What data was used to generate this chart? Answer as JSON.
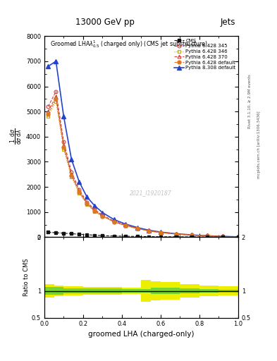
{
  "title_top": "13000 GeV pp",
  "title_right": "Jets",
  "xlabel": "groomed LHA (charged-only)",
  "ylabel_ratio": "Ratio to CMS",
  "right_label1": "Rivet 3.1.10, ≥ 2.9M events",
  "right_label2": "mcplots.cern.ch [arXiv:1306.3436]",
  "watermark": "2021_I1920187",
  "x_data": [
    0.02,
    0.06,
    0.1,
    0.14,
    0.18,
    0.22,
    0.26,
    0.3,
    0.36,
    0.42,
    0.48,
    0.54,
    0.6,
    0.68,
    0.76,
    0.84,
    0.92,
    1.0
  ],
  "cms_y": [
    200,
    180,
    160,
    140,
    120,
    100,
    80,
    60,
    50,
    40,
    30,
    25,
    20,
    15,
    12,
    8,
    6,
    5
  ],
  "pythia_345_y": [
    5200,
    5800,
    3800,
    2600,
    1900,
    1400,
    1100,
    880,
    640,
    480,
    360,
    260,
    195,
    130,
    88,
    55,
    32,
    15
  ],
  "pythia_346_y": [
    4800,
    5400,
    3500,
    2400,
    1750,
    1300,
    1020,
    820,
    600,
    450,
    340,
    245,
    182,
    122,
    82,
    52,
    30,
    14
  ],
  "pythia_370_y": [
    5000,
    5600,
    3650,
    2500,
    1820,
    1350,
    1060,
    850,
    620,
    465,
    350,
    252,
    188,
    126,
    85,
    53,
    31,
    14
  ],
  "pythia_default_y": [
    4900,
    5500,
    3580,
    2450,
    1800,
    1330,
    1040,
    840,
    610,
    458,
    345,
    248,
    185,
    124,
    84,
    52,
    30,
    14
  ],
  "pythia8_default_y": [
    6800,
    7000,
    4800,
    3100,
    2200,
    1600,
    1250,
    980,
    700,
    520,
    385,
    278,
    205,
    138,
    93,
    58,
    34,
    16
  ],
  "ylim_main": [
    0,
    8000
  ],
  "yticks_main": [
    0,
    1000,
    2000,
    3000,
    4000,
    5000,
    6000,
    7000,
    8000
  ],
  "xlim": [
    0,
    1
  ],
  "ratio_ylim": [
    0.5,
    2.0
  ],
  "ratio_yticks": [
    0.5,
    1.0,
    2.0
  ],
  "green_band_edges": [
    0.0,
    0.1,
    0.2,
    0.3,
    0.4,
    0.5,
    0.55,
    0.6,
    0.7,
    0.8,
    0.9,
    1.0
  ],
  "green_band_lo": [
    0.93,
    0.95,
    0.96,
    0.96,
    0.97,
    0.97,
    0.94,
    0.94,
    0.96,
    0.97,
    0.98,
    0.99
  ],
  "green_band_hi": [
    1.07,
    1.05,
    1.04,
    1.04,
    1.03,
    1.03,
    1.06,
    1.06,
    1.04,
    1.03,
    1.02,
    1.01
  ],
  "yellow_band_edges": [
    0.0,
    0.05,
    0.1,
    0.15,
    0.2,
    0.3,
    0.4,
    0.45,
    0.5,
    0.55,
    0.6,
    0.65,
    0.7,
    0.8,
    0.9,
    1.0
  ],
  "yellow_band_lo": [
    0.88,
    0.9,
    0.91,
    0.92,
    0.93,
    0.93,
    0.94,
    0.94,
    0.8,
    0.82,
    0.83,
    0.84,
    0.87,
    0.9,
    0.92,
    0.93
  ],
  "yellow_band_hi": [
    1.12,
    1.1,
    1.09,
    1.08,
    1.07,
    1.07,
    1.06,
    1.06,
    1.2,
    1.18,
    1.17,
    1.16,
    1.13,
    1.1,
    1.08,
    1.07
  ],
  "color_345": "#cc4444",
  "color_346": "#bbaa00",
  "color_370": "#cc4444",
  "color_default": "#dd7722",
  "color_pythia8": "#2244cc",
  "color_green": "#44cc44",
  "color_yellow": "#eeee00",
  "bg_color": "#ffffff",
  "cms_color": "#111111"
}
